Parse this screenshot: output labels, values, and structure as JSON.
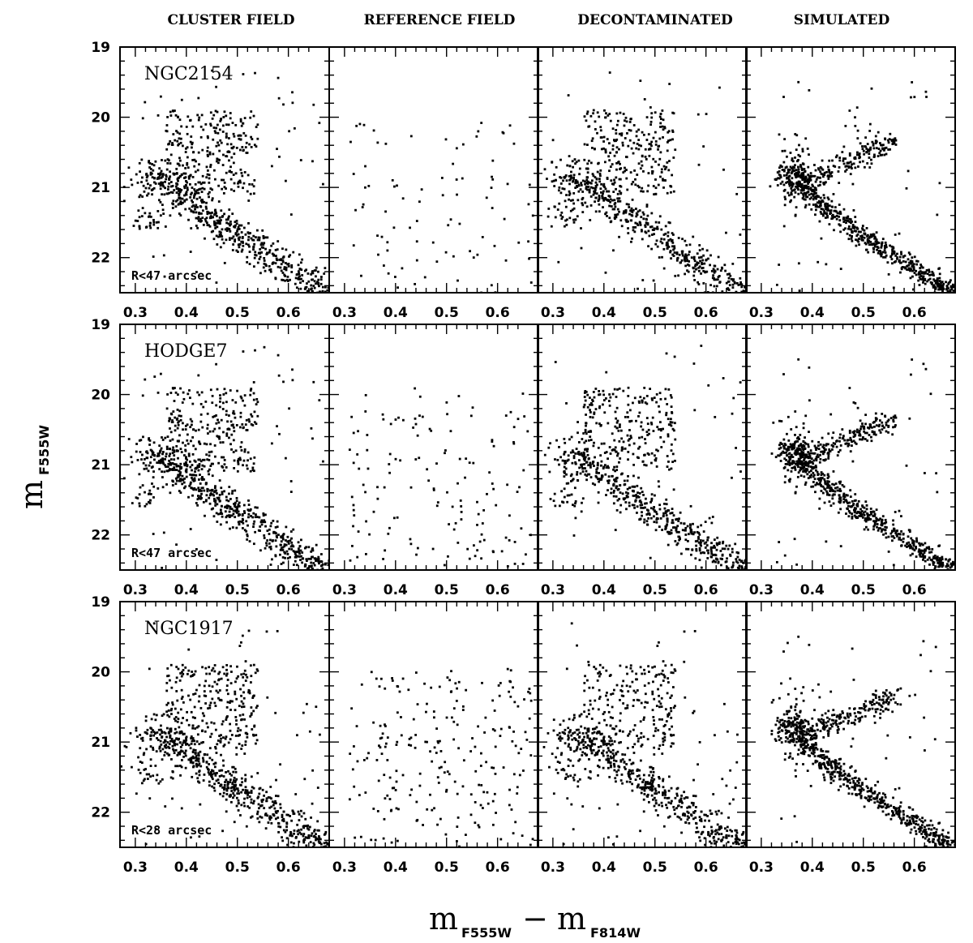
{
  "figure": {
    "column_titles": [
      "CLUSTER FIELD",
      "REFERENCE FIELD",
      "DECONTAMINATED",
      "SIMULATED"
    ],
    "y_axis": {
      "main": "m",
      "sub": "F555W"
    },
    "x_axis": {
      "main_left": "m",
      "sub_left": "F555W",
      "minus": "−",
      "main_right": "m",
      "sub_right": "F814W"
    }
  },
  "chart_data": {
    "type": "scatter",
    "xlabel": "mF555W − mF814W",
    "ylabel": "mF555W",
    "xlim": [
      0.27,
      0.68
    ],
    "ylim": [
      22.5,
      19.0
    ],
    "x_ticks": [
      0.3,
      0.4,
      0.5,
      0.6
    ],
    "x_tick_labels": [
      "0.3",
      "0.4",
      "0.5",
      "0.6"
    ],
    "y_ticks": [
      19,
      20,
      21,
      22
    ],
    "y_tick_labels": [
      "19",
      "20",
      "21",
      "22"
    ],
    "inverted_y": true,
    "columns": [
      "CLUSTER FIELD",
      "REFERENCE FIELD",
      "DECONTAMINATED",
      "SIMULATED"
    ],
    "rows": [
      {
        "cluster": "NGC2154",
        "radius_label": "R<47 arcsec"
      },
      {
        "cluster": "HODGE7",
        "radius_label": "R<47 arcsec"
      },
      {
        "cluster": "NGC1917",
        "radius_label": "R<28 arcsec"
      }
    ],
    "point_density": {
      "cluster_field": 900,
      "reference_field": 90,
      "decontaminated": 800,
      "simulated": 900
    },
    "reference_field_density_by_row": [
      90,
      150,
      240
    ],
    "sequence": {
      "turnoff": {
        "x": 0.42,
        "y": 20.45
      },
      "main_sequence": [
        [
          0.36,
          20.9
        ],
        [
          0.42,
          21.25
        ],
        [
          0.5,
          21.7
        ],
        [
          0.58,
          22.05
        ],
        [
          0.66,
          22.45
        ]
      ],
      "red_clump": {
        "x": 0.5,
        "y": 20.35
      }
    }
  }
}
